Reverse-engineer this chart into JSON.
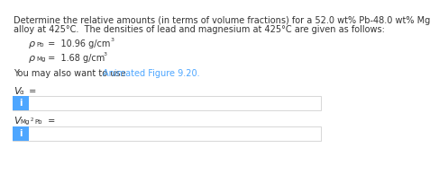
{
  "title_line1": "Determine the relative amounts (in terms of volume fractions) for a 52.0 wt% Pb-48.0 wt% Mg",
  "title_line2": "alloy at 425°C.  The densities of lead and magnesium at 425°C are given as follows:",
  "rho_pb_sym": "ρ",
  "rho_pb_sub": "Pb",
  "rho_pb_val": " =  10.96 g/cm",
  "rho_pb_exp": "3",
  "rho_mg_sym": "ρ",
  "rho_mg_sub": "Mg",
  "rho_mg_val": " =  1.68 g/cm",
  "rho_mg_exp": "3",
  "you_may": "You may also want to use ",
  "link_text": "Animated Figure 9.20.",
  "v_alpha_italic": "V",
  "v_alpha_sub": "α",
  "v_alpha_eq": " =",
  "v_mg2pb_italic": "V",
  "v_mg2pb_sub": "Mg",
  "v_mg2pb_sub2": "2",
  "v_mg2pb_sub3": "Pb",
  "v_mg2pb_eq": " =",
  "box_blue": "#4da6ff",
  "box_i_text": "i",
  "link_color": "#4da6ff",
  "bg_color": "#ffffff",
  "text_color": "#333333",
  "box_border": "#d0d0d0",
  "fs_body": 7.0,
  "fs_sub": 5.0,
  "fs_sup": 4.5
}
